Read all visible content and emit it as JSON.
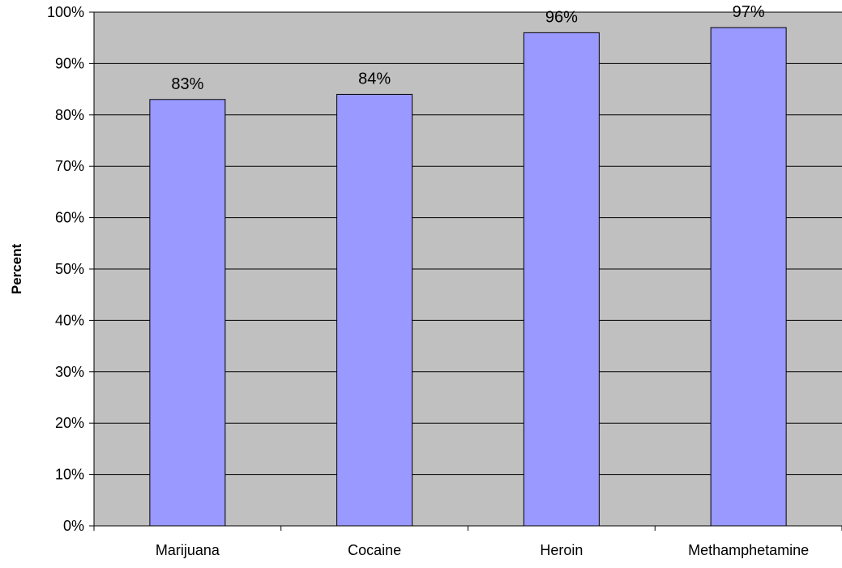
{
  "chart_data": {
    "type": "bar",
    "title": "",
    "xlabel": "",
    "ylabel": "Percent",
    "categories": [
      "Marijuana",
      "Cocaine",
      "Heroin",
      "Methamphetamine"
    ],
    "values": [
      83,
      84,
      96,
      97
    ],
    "value_labels": [
      "83%",
      "84%",
      "96%",
      "97%"
    ],
    "ylim": [
      0,
      100
    ],
    "yticks": [
      0,
      10,
      20,
      30,
      40,
      50,
      60,
      70,
      80,
      90,
      100
    ],
    "ytick_labels": [
      "0%",
      "10%",
      "20%",
      "30%",
      "40%",
      "50%",
      "60%",
      "70%",
      "80%",
      "90%",
      "100%"
    ],
    "grid": true,
    "legend": "none",
    "colors": {
      "bar_fill": "#9999ff",
      "bar_stroke": "#000000",
      "plot_background": "#c0c0c0",
      "gridline": "#000000",
      "text": "#000000"
    }
  }
}
